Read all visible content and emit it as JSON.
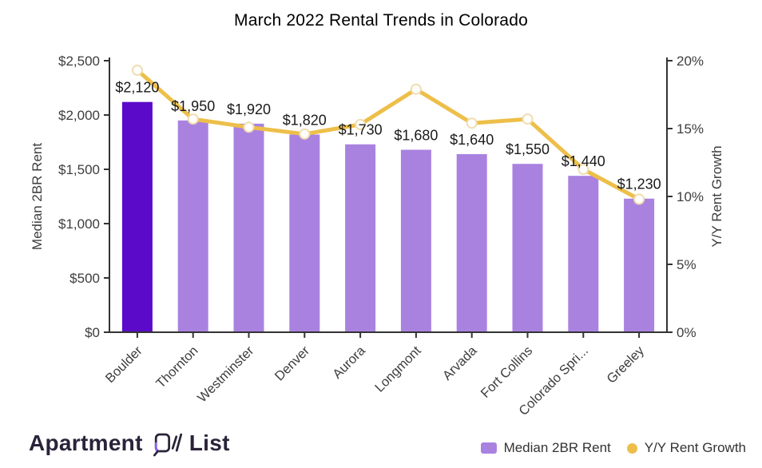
{
  "title": "March 2022 Rental Trends in Colorado",
  "chart_data": {
    "type": "bar",
    "subtype": "bar-plus-line-dual-axis",
    "title": "March 2022 Rental Trends in Colorado",
    "categories": [
      "Boulder",
      "Thornton",
      "Westminster",
      "Denver",
      "Aurora",
      "Longmont",
      "Arvada",
      "Fort Collins",
      "Colorado Spri...",
      "Greeley"
    ],
    "series": [
      {
        "name": "Median 2BR Rent",
        "type": "bar",
        "axis": "left",
        "values": [
          2120,
          1950,
          1920,
          1820,
          1730,
          1680,
          1640,
          1550,
          1440,
          1230
        ],
        "value_labels": [
          "$2,120",
          "$1,950",
          "$1,920",
          "$1,820",
          "$1,730",
          "$1,680",
          "$1,640",
          "$1,550",
          "$1,440",
          "$1,230"
        ]
      },
      {
        "name": "Y/Y Rent Growth",
        "type": "line",
        "axis": "right",
        "values": [
          19.3,
          15.7,
          15.1,
          14.6,
          15.3,
          17.9,
          15.4,
          15.7,
          12.0,
          9.8
        ]
      }
    ],
    "left_axis": {
      "title": "Median 2BR Rent",
      "min": 0,
      "max": 2500,
      "ticks": [
        "$0",
        "$500",
        "$1,000",
        "$1,500",
        "$2,000",
        "$2,500"
      ]
    },
    "right_axis": {
      "title": "Y/Y Rent Growth",
      "min": 0,
      "max": 20,
      "ticks": [
        "0%",
        "5%",
        "10%",
        "15%",
        "20%"
      ]
    },
    "x_axis": {
      "tick_rotation": -45
    },
    "grid": false,
    "legend_position": "bottom-right",
    "colors": {
      "bar": "#A982E0",
      "bar_highlight": "#5A0AC8",
      "highlight_index": 0,
      "line": "#EDBF4A",
      "marker_fill": "#FFFFFF",
      "marker_stroke": "#F0DEB2",
      "axis": "#333333",
      "tick_text": "#3D3D3D",
      "value_text": "#1A1A1A"
    }
  },
  "legend": {
    "items": [
      {
        "label": "Median 2BR Rent",
        "shape": "square",
        "color": "#A982E0"
      },
      {
        "label": "Y/Y Rent Growth",
        "shape": "circle",
        "color": "#EDBF4A"
      }
    ]
  },
  "footer": {
    "brand_word1": "Apartment",
    "brand_word2": "List"
  }
}
